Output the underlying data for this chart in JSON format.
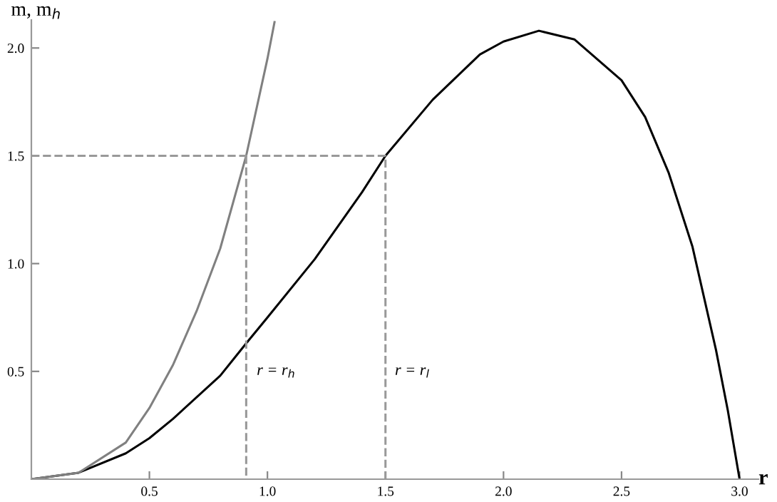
{
  "chart_data": {
    "type": "line",
    "xlabel": "r",
    "ylabel": "m, m$_{h}$",
    "xlim": [
      0,
      3.08
    ],
    "ylim": [
      0,
      2.13
    ],
    "xticks": [
      0.5,
      {
        "value": 1,
        "label": "1.0"
      },
      1.5,
      {
        "value": 2,
        "label": "2.0"
      },
      2.5,
      {
        "value": 3,
        "label": "3.0"
      }
    ],
    "yticks": [
      0.5,
      {
        "value": 1,
        "label": "1.0"
      },
      1.5,
      {
        "value": 2,
        "label": "2.0"
      }
    ],
    "grid": false,
    "series": [
      {
        "color": "#000000",
        "line_style": "solid",
        "x": [
          0,
          0.2,
          0.4,
          0.5,
          0.6,
          0.8,
          0.91,
          1.0,
          1.2,
          1.4,
          1.5,
          1.7,
          1.9,
          2.0,
          2.15,
          2.3,
          2.5,
          2.6,
          2.7,
          2.8,
          2.9,
          2.95,
          3.0
        ],
        "values": [
          0,
          0.03,
          0.12,
          0.19,
          0.28,
          0.48,
          0.63,
          0.75,
          1.02,
          1.33,
          1.5,
          1.76,
          1.97,
          2.03,
          2.08,
          2.04,
          1.85,
          1.68,
          1.42,
          1.08,
          0.6,
          0.32,
          0
        ]
      },
      {
        "color": "#808080",
        "line_style": "solid",
        "x": [
          0,
          0.2,
          0.4,
          0.5,
          0.6,
          0.7,
          0.8,
          0.91,
          1.0,
          1.03
        ],
        "values": [
          0,
          0.03,
          0.17,
          0.33,
          0.53,
          0.78,
          1.07,
          1.5,
          1.95,
          2.12
        ]
      },
      {
        "color": "#999999",
        "line_style": "dashed",
        "x": [
          0,
          1.5,
          1.5
        ],
        "values": [
          1.5,
          1.5,
          0
        ]
      },
      {
        "color": "#999999",
        "line_style": "dashed",
        "x": [
          0.91,
          0.91
        ],
        "values": [
          1.5,
          0
        ]
      }
    ],
    "annotations": [
      "r = r$_{h}$",
      "r = r$_{l}$"
    ]
  }
}
